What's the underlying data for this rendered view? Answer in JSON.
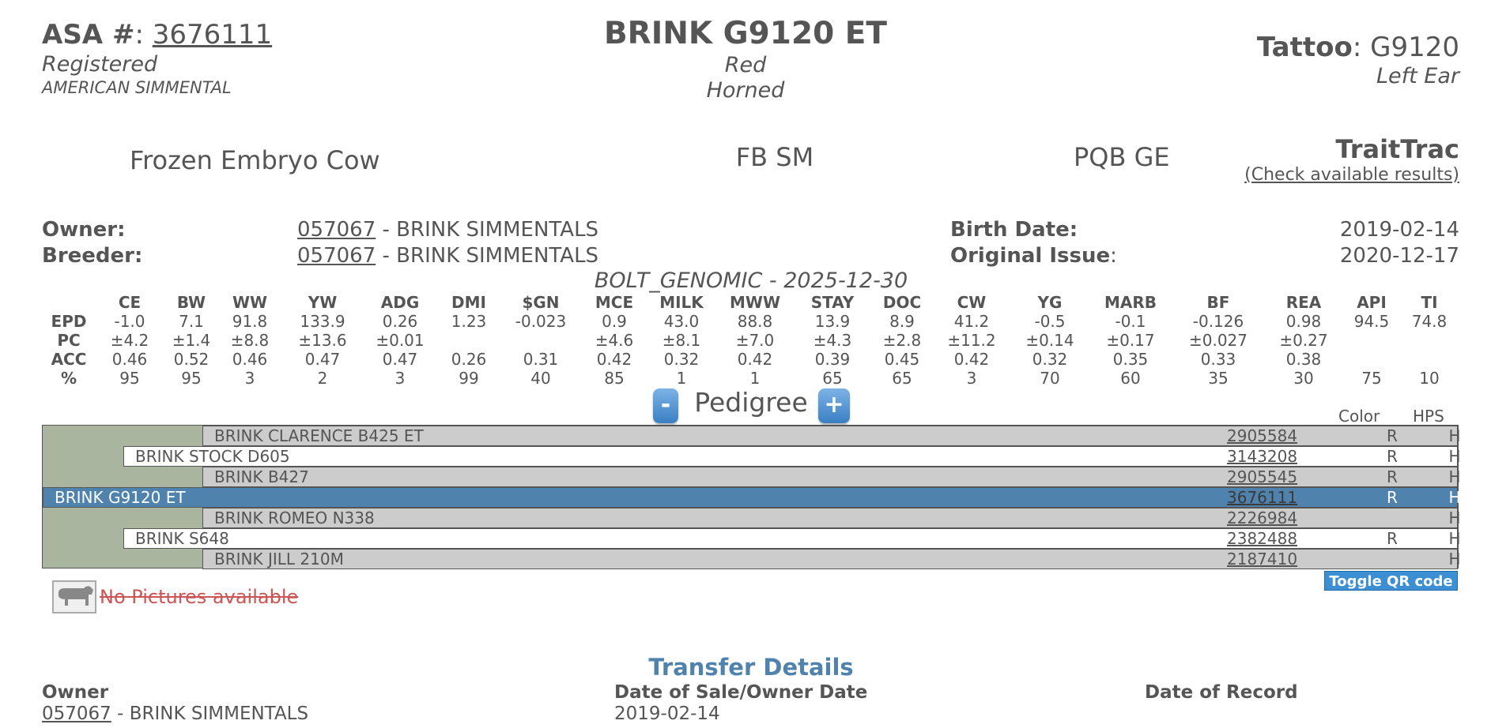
{
  "header": {
    "asa_label": "ASA #",
    "asa_number": "3676111",
    "status": "Registered",
    "breed": "AMERICAN SIMMENTAL",
    "name": "BRINK G9120 ET",
    "color": "Red",
    "horned": "Horned",
    "tattoo_label": "Tattoo",
    "tattoo_value": "G9120",
    "tattoo_location": "Left Ear"
  },
  "info": {
    "type": "Frozen Embryo Cow",
    "breed_code": "FB SM",
    "pqb": "PQB GE",
    "traittrac_title": "TraitTrac",
    "traittrac_link": "(Check available results)"
  },
  "owner": {
    "owner_label": "Owner:",
    "owner_id": "057067",
    "owner_name": "- BRINK SIMMENTALS",
    "breeder_label": "Breeder:",
    "breeder_id": "057067",
    "breeder_name": "- BRINK SIMMENTALS",
    "birth_label": "Birth Date:",
    "birth_date": "2019-02-14",
    "issue_label": "Original Issue",
    "issue_date": "2020-12-17"
  },
  "epd": {
    "title": "BOLT_GENOMIC - 2025-12-30",
    "row_labels": [
      "EPD",
      "PC",
      "ACC",
      "%"
    ],
    "columns": [
      {
        "name": "CE",
        "epd": "-1.0",
        "pc": "±4.2",
        "acc": "0.46",
        "pct": "95"
      },
      {
        "name": "BW",
        "epd": "7.1",
        "pc": "±1.4",
        "acc": "0.52",
        "pct": "95"
      },
      {
        "name": "WW",
        "epd": "91.8",
        "pc": "±8.8",
        "acc": "0.46",
        "pct": "3"
      },
      {
        "name": "YW",
        "epd": "133.9",
        "pc": "±13.6",
        "acc": "0.47",
        "pct": "2"
      },
      {
        "name": "ADG",
        "epd": "0.26",
        "pc": "±0.01",
        "acc": "0.47",
        "pct": "3"
      },
      {
        "name": "DMI",
        "epd": "1.23",
        "pc": "",
        "acc": "0.26",
        "pct": "99"
      },
      {
        "name": "$GN",
        "epd": "-0.023",
        "pc": "",
        "acc": "0.31",
        "pct": "40"
      },
      {
        "name": "MCE",
        "epd": "0.9",
        "pc": "±4.6",
        "acc": "0.42",
        "pct": "85"
      },
      {
        "name": "MILK",
        "epd": "43.0",
        "pc": "±8.1",
        "acc": "0.32",
        "pct": "1"
      },
      {
        "name": "MWW",
        "epd": "88.8",
        "pc": "±7.0",
        "acc": "0.42",
        "pct": "1"
      },
      {
        "name": "STAY",
        "epd": "13.9",
        "pc": "±4.3",
        "acc": "0.39",
        "pct": "65"
      },
      {
        "name": "DOC",
        "epd": "8.9",
        "pc": "±2.8",
        "acc": "0.45",
        "pct": "65"
      },
      {
        "name": "CW",
        "epd": "41.2",
        "pc": "±11.2",
        "acc": "0.42",
        "pct": "3"
      },
      {
        "name": "YG",
        "epd": "-0.5",
        "pc": "±0.14",
        "acc": "0.32",
        "pct": "70"
      },
      {
        "name": "MARB",
        "epd": "-0.1",
        "pc": "±0.17",
        "acc": "0.35",
        "pct": "60"
      },
      {
        "name": "BF",
        "epd": "-0.126",
        "pc": "±0.027",
        "acc": "0.33",
        "pct": "35"
      },
      {
        "name": "REA",
        "epd": "0.98",
        "pc": "±0.27",
        "acc": "0.38",
        "pct": "30"
      },
      {
        "name": "API",
        "epd": "94.5",
        "pc": "",
        "acc": "",
        "pct": "75"
      },
      {
        "name": "TI",
        "epd": "74.8",
        "pc": "",
        "acc": "",
        "pct": "10"
      }
    ]
  },
  "pedigree": {
    "title": "Pedigree",
    "minus": "-",
    "plus": "+",
    "color_header": "Color",
    "hps_header": "HPS",
    "rows": [
      {
        "name": "BRINK CLARENCE B425 ET",
        "reg": "2905584",
        "color": "R",
        "hps": "H"
      },
      {
        "name": "BRINK STOCK D605",
        "reg": "3143208",
        "color": "R",
        "hps": "H"
      },
      {
        "name": "BRINK B427",
        "reg": "2905545",
        "color": "R",
        "hps": "H"
      },
      {
        "name": "BRINK G9120 ET",
        "reg": "3676111",
        "color": "R",
        "hps": "H"
      },
      {
        "name": "BRINK ROMEO N338",
        "reg": "2226984",
        "color": "",
        "hps": "H"
      },
      {
        "name": "BRINK S648",
        "reg": "2382488",
        "color": "R",
        "hps": "H"
      },
      {
        "name": "BRINK JILL 210M",
        "reg": "2187410",
        "color": "",
        "hps": "H"
      }
    ],
    "qr_button": "Toggle QR code"
  },
  "pictures": {
    "icon": "cow-icon",
    "text": "No Pictures available"
  },
  "transfer": {
    "title": "Transfer Details",
    "owner_header": "Owner",
    "sale_header": "Date of Sale/Owner Date",
    "record_header": "Date of Record",
    "owner_id": "057067",
    "owner_name": "- BRINK SIMMENTALS",
    "sale_date": "2019-02-14",
    "record_date": ""
  }
}
